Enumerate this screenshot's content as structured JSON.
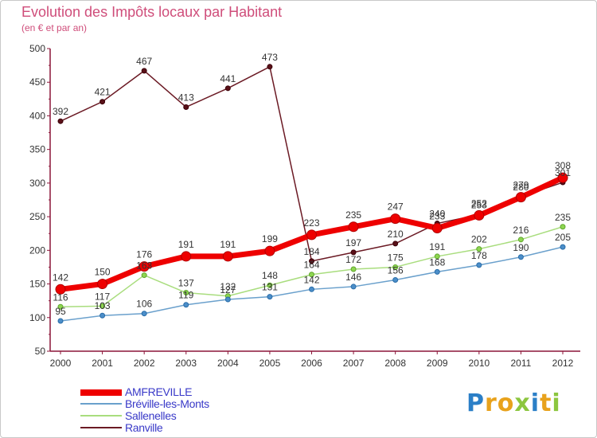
{
  "title": "Evolution des Impôts locaux par Habitant",
  "subtitle": "(en € et par an)",
  "logo": "Proxiti",
  "colors": {
    "title": "#cf4d7a",
    "axis": "#8c1538",
    "grid_text": "#333333",
    "legend_text": "#3939c8"
  },
  "chart_data": {
    "type": "line",
    "title": "Evolution des Impôts locaux par Habitant",
    "subtitle": "(en € et par an)",
    "xlabel": "",
    "ylabel": "",
    "categories": [
      "2000",
      "2001",
      "2002",
      "2003",
      "2004",
      "2005",
      "2006",
      "2007",
      "2008",
      "2009",
      "2010",
      "2011",
      "2012"
    ],
    "ylim": [
      50,
      500
    ],
    "yticks": [
      50,
      100,
      150,
      200,
      250,
      300,
      350,
      400,
      450,
      500
    ],
    "legend_position": "bottom-left",
    "series": [
      {
        "name": "AMFREVILLE",
        "color": "#ee0000",
        "values": [
          142,
          150,
          176,
          191,
          191,
          199,
          223,
          235,
          247,
          233,
          252,
          279,
          308
        ],
        "labels": [
          "142",
          "150",
          "176",
          "191",
          "191",
          "199",
          "223",
          "235",
          "247",
          "233",
          "252",
          "279",
          "308"
        ]
      },
      {
        "name": "Bréville-les-Monts",
        "color": "#6aa0cc",
        "values": [
          95,
          103,
          106,
          119,
          127,
          131,
          142,
          146,
          156,
          168,
          178,
          190,
          205
        ],
        "labels": [
          "95",
          "103",
          "106",
          "119",
          "127",
          "131",
          "142",
          "146",
          "156",
          "168",
          "178",
          "190",
          "205"
        ]
      },
      {
        "name": "Sallenelles",
        "color": "#a9dd7e",
        "values": [
          116,
          117,
          163,
          137,
          132,
          148,
          164,
          172,
          175,
          191,
          202,
          216,
          235
        ],
        "labels": [
          "116",
          "117",
          "163",
          "137",
          "132",
          "148",
          "164",
          "172",
          "175",
          "191",
          "202",
          "216",
          "235"
        ]
      },
      {
        "name": "Ranville",
        "color": "#6b1a24",
        "values": [
          392,
          421,
          467,
          413,
          441,
          473,
          184,
          197,
          210,
          240,
          253,
          280,
          301
        ],
        "labels": [
          "392",
          "421",
          "467",
          "413",
          "441",
          "473",
          "184",
          "197",
          "210",
          "240",
          "253",
          "280",
          "301"
        ]
      }
    ]
  }
}
